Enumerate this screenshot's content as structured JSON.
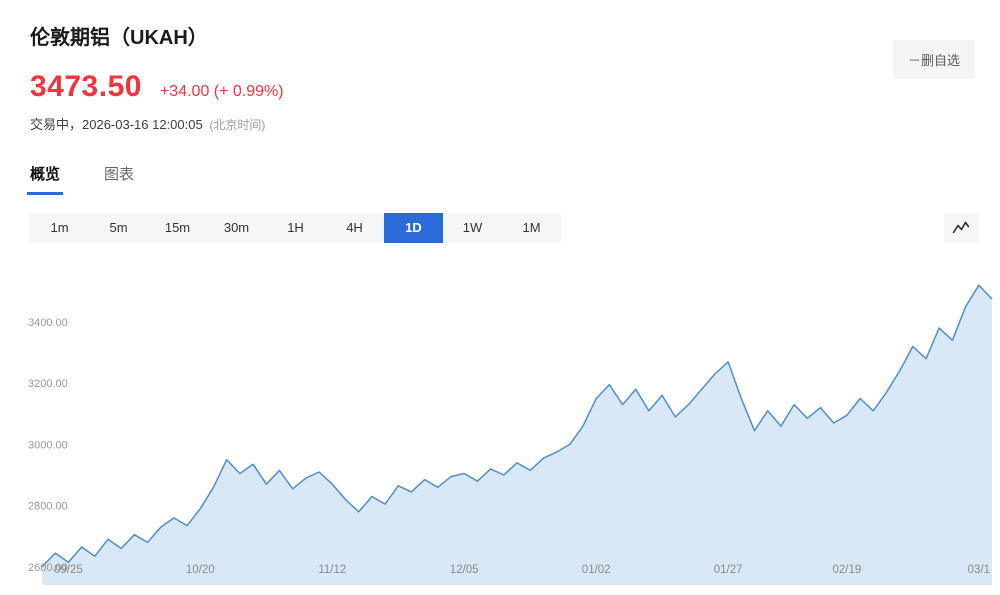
{
  "header": {
    "title": "伦敦期铝（UKAH）",
    "price": "3473.50",
    "change": "+34.00 (+ 0.99%)",
    "status": "交易中，2026-03-16 12:00:05",
    "status_note": "(北京时间)",
    "remove_watchlist_label": "－删自选"
  },
  "tabs": [
    {
      "label": "概览",
      "name": "overview",
      "active": true
    },
    {
      "label": "图表",
      "name": "chart",
      "active": false
    }
  ],
  "range_buttons": [
    {
      "label": "1m",
      "name": "1m",
      "active": false
    },
    {
      "label": "5m",
      "name": "5m",
      "active": false
    },
    {
      "label": "15m",
      "name": "15m",
      "active": false
    },
    {
      "label": "30m",
      "name": "30m",
      "active": false
    },
    {
      "label": "1H",
      "name": "1h",
      "active": false
    },
    {
      "label": "4H",
      "name": "4h",
      "active": false
    },
    {
      "label": "1D",
      "name": "1d",
      "active": true
    },
    {
      "label": "1W",
      "name": "1w",
      "active": false
    },
    {
      "label": "1M",
      "name": "1mo",
      "active": false
    }
  ],
  "colors": {
    "accent_red": "#f5333f",
    "accent_blue": "#2b6bd8",
    "line": "#4e8fd0",
    "area_fill": "#d9e8f6"
  },
  "chart_data": {
    "type": "area",
    "ylim": [
      2580,
      3560
    ],
    "y_ticks": [
      2600,
      2800,
      3000,
      3200,
      3400
    ],
    "y_tick_labels": [
      "2600.00",
      "2800.00",
      "3000.00",
      "3200.00",
      "3400.00"
    ],
    "x_tick_labels": [
      "09/25",
      "10/20",
      "11/12",
      "12/05",
      "01/02",
      "01/27",
      "02/19",
      "03/1"
    ],
    "x_tick_index": [
      2,
      12,
      22,
      32,
      42,
      52,
      61,
      71
    ],
    "values": [
      2600,
      2645,
      2615,
      2665,
      2635,
      2690,
      2660,
      2705,
      2680,
      2730,
      2760,
      2735,
      2790,
      2860,
      2950,
      2905,
      2935,
      2870,
      2915,
      2855,
      2890,
      2910,
      2870,
      2820,
      2780,
      2830,
      2805,
      2865,
      2845,
      2885,
      2860,
      2895,
      2905,
      2880,
      2920,
      2900,
      2940,
      2915,
      2955,
      2975,
      3000,
      3060,
      3150,
      3195,
      3130,
      3180,
      3110,
      3160,
      3090,
      3130,
      3180,
      3230,
      3270,
      3150,
      3045,
      3110,
      3060,
      3130,
      3085,
      3120,
      3070,
      3095,
      3150,
      3110,
      3170,
      3240,
      3320,
      3280,
      3380,
      3340,
      3450,
      3520,
      3475
    ]
  }
}
